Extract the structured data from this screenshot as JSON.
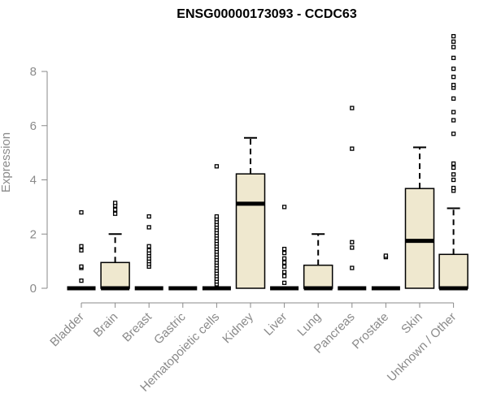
{
  "chart_data": {
    "type": "boxplot",
    "title": "ENSG00000173093 - CCDC63",
    "ylabel": "Expression",
    "xlabel": "",
    "ylim": [
      0,
      9.4
    ],
    "yticks": [
      0,
      2,
      4,
      6,
      8
    ],
    "box_color": "#efe8cf",
    "categories": [
      "Bladder",
      "Brain",
      "Breast",
      "Gastric",
      "Hematopoietic cells",
      "Kidney",
      "Liver",
      "Lung",
      "Pancreas",
      "Prostate",
      "Skin",
      "Unknown / Other"
    ],
    "boxes": [
      {
        "q1": 0,
        "median": 0,
        "q3": 0,
        "whisker_low": 0,
        "whisker_high": 0,
        "outliers": [
          0.28,
          0.75,
          0.8,
          1.4,
          1.55,
          2.8
        ]
      },
      {
        "q1": 0,
        "median": 0,
        "q3": 0.95,
        "whisker_low": 0,
        "whisker_high": 2.0,
        "outliers": [
          2.75,
          2.9,
          3.05,
          3.15
        ]
      },
      {
        "q1": 0,
        "median": 0,
        "q3": 0,
        "whisker_low": 0,
        "whisker_high": 0,
        "outliers": [
          0.8,
          0.9,
          1.0,
          1.1,
          1.2,
          1.3,
          1.4,
          1.55,
          2.25,
          2.65
        ]
      },
      {
        "q1": 0,
        "median": 0,
        "q3": 0,
        "whisker_low": 0,
        "whisker_high": 0,
        "outliers": []
      },
      {
        "q1": 0,
        "median": 0,
        "q3": 0,
        "whisker_low": 0,
        "whisker_high": 0,
        "outliers": [
          0.15,
          0.25,
          0.35,
          0.45,
          0.55,
          0.65,
          0.75,
          0.85,
          0.95,
          1.05,
          1.15,
          1.25,
          1.35,
          1.45,
          1.55,
          1.65,
          1.75,
          1.85,
          1.95,
          2.05,
          2.15,
          2.25,
          2.35,
          2.45,
          2.55,
          2.65,
          4.5
        ]
      },
      {
        "q1": 0,
        "median": 3.12,
        "q3": 4.22,
        "whisker_low": 0,
        "whisker_high": 5.55,
        "outliers": []
      },
      {
        "q1": 0,
        "median": 0,
        "q3": 0,
        "whisker_low": 0,
        "whisker_high": 0,
        "outliers": [
          0.2,
          0.45,
          0.6,
          0.8,
          0.95,
          1.1,
          1.3,
          1.45,
          3.0
        ]
      },
      {
        "q1": 0,
        "median": 0,
        "q3": 0.85,
        "whisker_low": 0,
        "whisker_high": 2.0,
        "outliers": []
      },
      {
        "q1": 0,
        "median": 0,
        "q3": 0,
        "whisker_low": 0,
        "whisker_high": 0,
        "outliers": [
          0.75,
          1.5,
          1.7,
          5.15,
          6.65
        ]
      },
      {
        "q1": 0,
        "median": 0,
        "q3": 0,
        "whisker_low": 0,
        "whisker_high": 0,
        "outliers": [
          1.15,
          1.2
        ]
      },
      {
        "q1": 0,
        "median": 1.75,
        "q3": 3.68,
        "whisker_low": 0,
        "whisker_high": 5.2,
        "outliers": []
      },
      {
        "q1": 0,
        "median": 0,
        "q3": 1.25,
        "whisker_low": 0,
        "whisker_high": 2.95,
        "outliers": [
          3.6,
          3.7,
          4.0,
          4.2,
          4.45,
          4.6,
          5.7,
          6.2,
          6.5,
          7.0,
          7.4,
          7.5,
          7.8,
          8.1,
          8.5,
          8.9,
          9.1,
          9.3
        ]
      }
    ]
  }
}
